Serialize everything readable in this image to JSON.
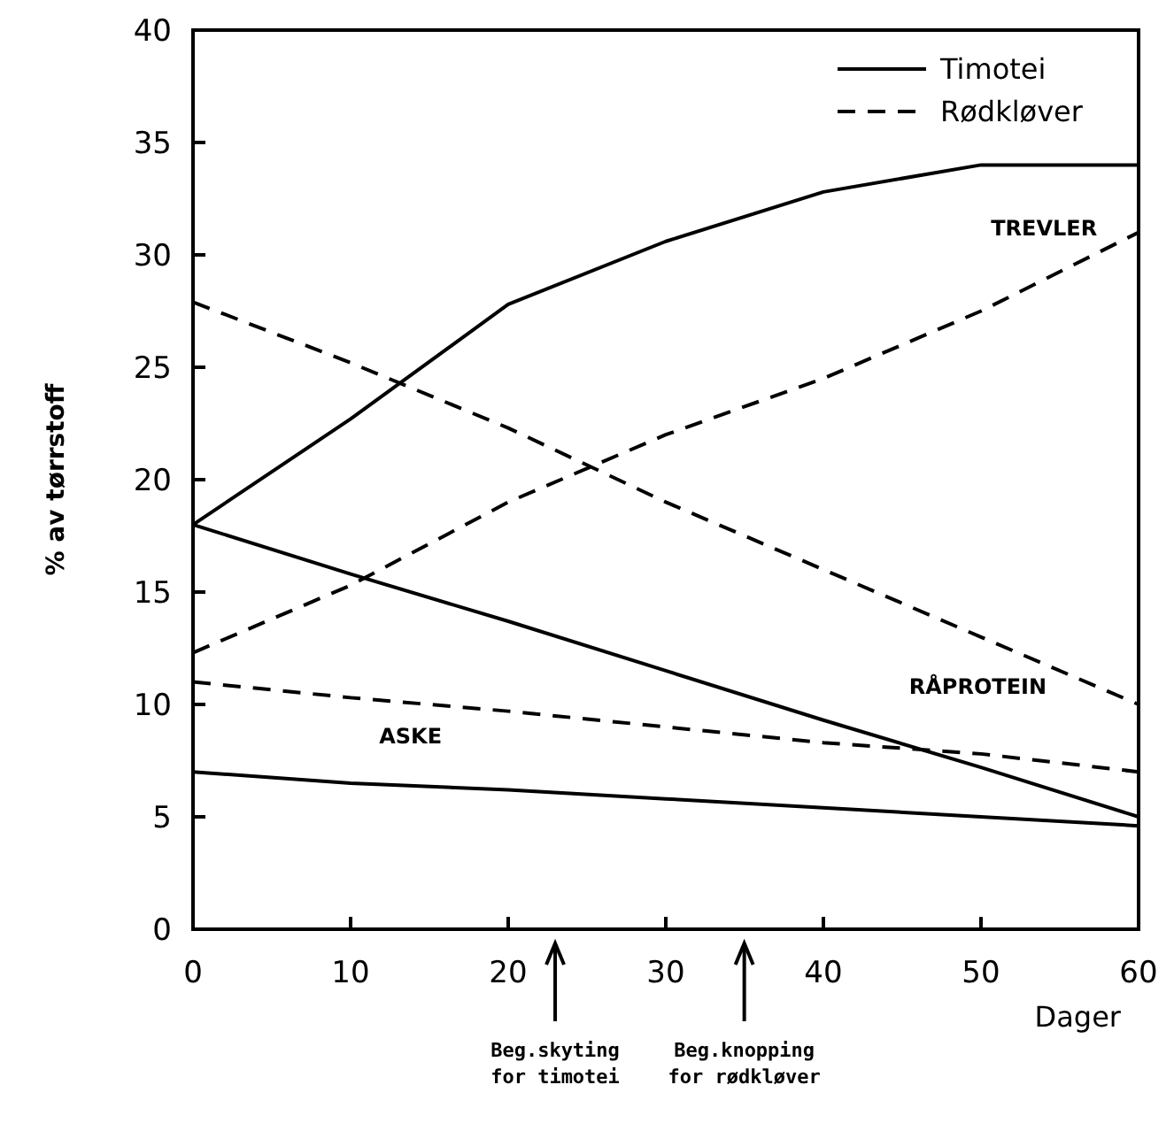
{
  "chart_data": {
    "type": "line",
    "ylabel": "% av tørrstoff",
    "xlabel": "Dager",
    "x": [
      0,
      10,
      20,
      30,
      40,
      50,
      60
    ],
    "xlim": [
      0,
      60
    ],
    "xticks": [
      0,
      10,
      20,
      30,
      40,
      50,
      60
    ],
    "ylim": [
      0,
      40
    ],
    "yticks": [
      0,
      5,
      10,
      15,
      20,
      25,
      30,
      35,
      40
    ],
    "grid": false,
    "legend": "top right",
    "marker": "none",
    "series": [
      {
        "name": "Timotei",
        "color": "#000000",
        "line_style": "solid",
        "values": [
          18,
          22.7,
          27.8,
          30.6,
          32.8,
          34,
          34
        ]
      },
      {
        "name": "Rødkløver",
        "color": "#000000",
        "line_style": "dashed",
        "values": [
          12.3,
          15.3,
          19,
          22,
          24.5,
          27.5,
          31
        ]
      },
      {
        "color": "#000000",
        "line_style": "dashed",
        "values": [
          27.9,
          25.2,
          22.3,
          19,
          16,
          13,
          10
        ]
      },
      {
        "color": "#000000",
        "line_style": "solid",
        "values": [
          18,
          15.8,
          13.7,
          11.5,
          9.3,
          7.2,
          5
        ]
      },
      {
        "color": "#000000",
        "line_style": "dashed",
        "values": [
          11,
          10.3,
          9.7,
          9,
          8.3,
          7.8,
          7
        ]
      },
      {
        "color": "#000000",
        "line_style": "solid",
        "values": [
          7,
          6.5,
          6.2,
          5.8,
          5.4,
          5,
          4.6
        ]
      }
    ],
    "annotations": [
      "TREVLER",
      "RÅPROTEIN",
      "ASKE",
      "Beg.skyting for timotei",
      "Beg.knopping for rødkløver"
    ]
  }
}
